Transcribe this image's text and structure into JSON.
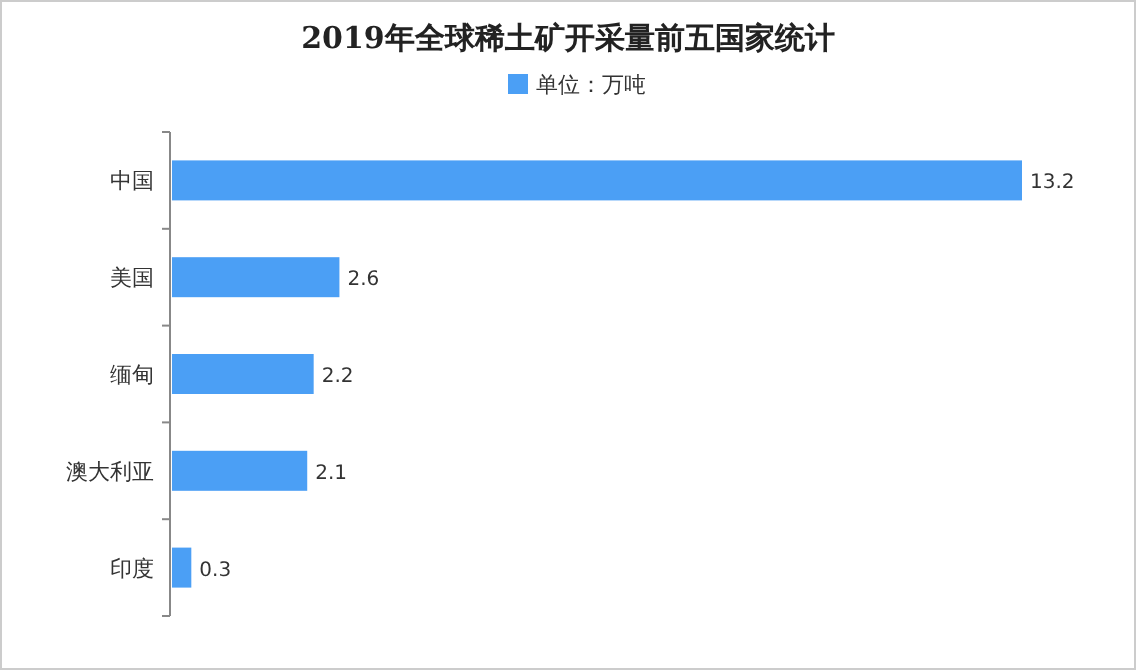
{
  "chart_data": {
    "type": "bar",
    "orientation": "horizontal",
    "title": "2019年全球稀土矿开采量前五国家统计",
    "categories": [
      "中国",
      "美国",
      "缅甸",
      "澳大利亚",
      "印度"
    ],
    "series": [
      {
        "name": "单位：万吨",
        "color": "#4b9ff5",
        "values": [
          13.2,
          2.6,
          2.2,
          2.1,
          0.3
        ]
      }
    ],
    "data_labels": true,
    "legend": "top"
  }
}
